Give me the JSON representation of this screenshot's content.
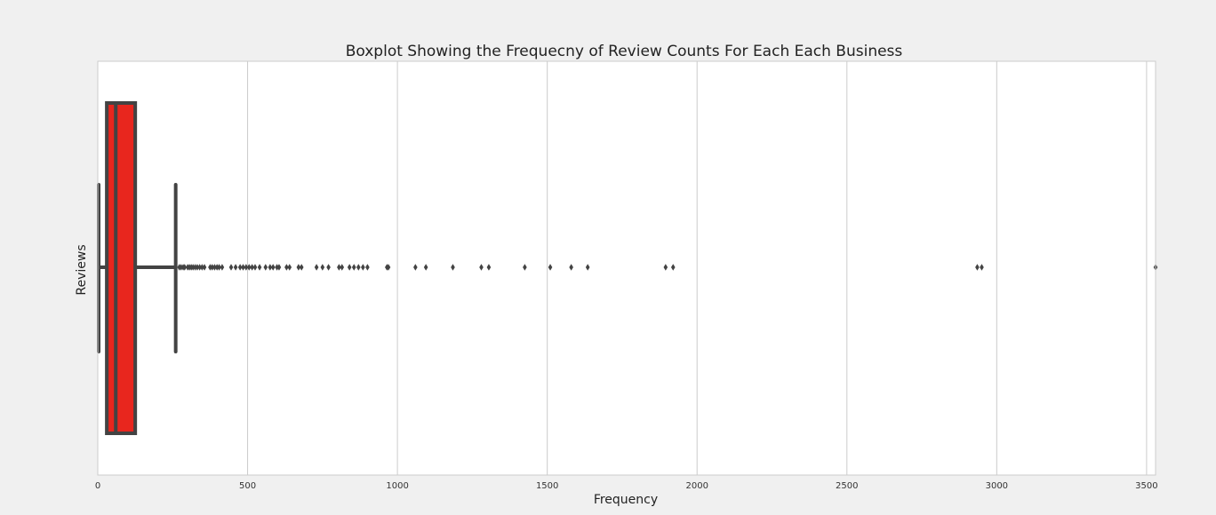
{
  "chart_data": {
    "type": "box",
    "orientation": "horizontal",
    "title": "Boxplot Showing the Frequecny of Review Counts For Each Each Business",
    "xlabel": "Frequency",
    "ylabel": "Reviews",
    "xlim": [
      0,
      3530
    ],
    "xticks": [
      0,
      500,
      1000,
      1500,
      2000,
      2500,
      3000,
      3500
    ],
    "grid": "vertical",
    "box": {
      "whisker_low": 3,
      "q1": 30,
      "median": 60,
      "q3": 125,
      "whisker_high": 260
    },
    "outliers": [
      272,
      278,
      285,
      290,
      300,
      306,
      312,
      318,
      325,
      332,
      340,
      348,
      356,
      375,
      382,
      390,
      398,
      405,
      415,
      445,
      460,
      475,
      485,
      495,
      505,
      515,
      525,
      540,
      560,
      575,
      585,
      598,
      605,
      630,
      640,
      670,
      680,
      730,
      750,
      770,
      805,
      815,
      840,
      855,
      870,
      885,
      900,
      965,
      970,
      1060,
      1095,
      1185,
      1280,
      1305,
      1425,
      1510,
      1580,
      1635,
      1895,
      1920,
      2935,
      2950,
      3530
    ],
    "colors": {
      "box_fill": "#e8261e",
      "box_edge": "#434343",
      "outlier": "#434343",
      "grid": "#cccccc",
      "background": "#ffffff",
      "figure": "#f0f0f0"
    }
  }
}
